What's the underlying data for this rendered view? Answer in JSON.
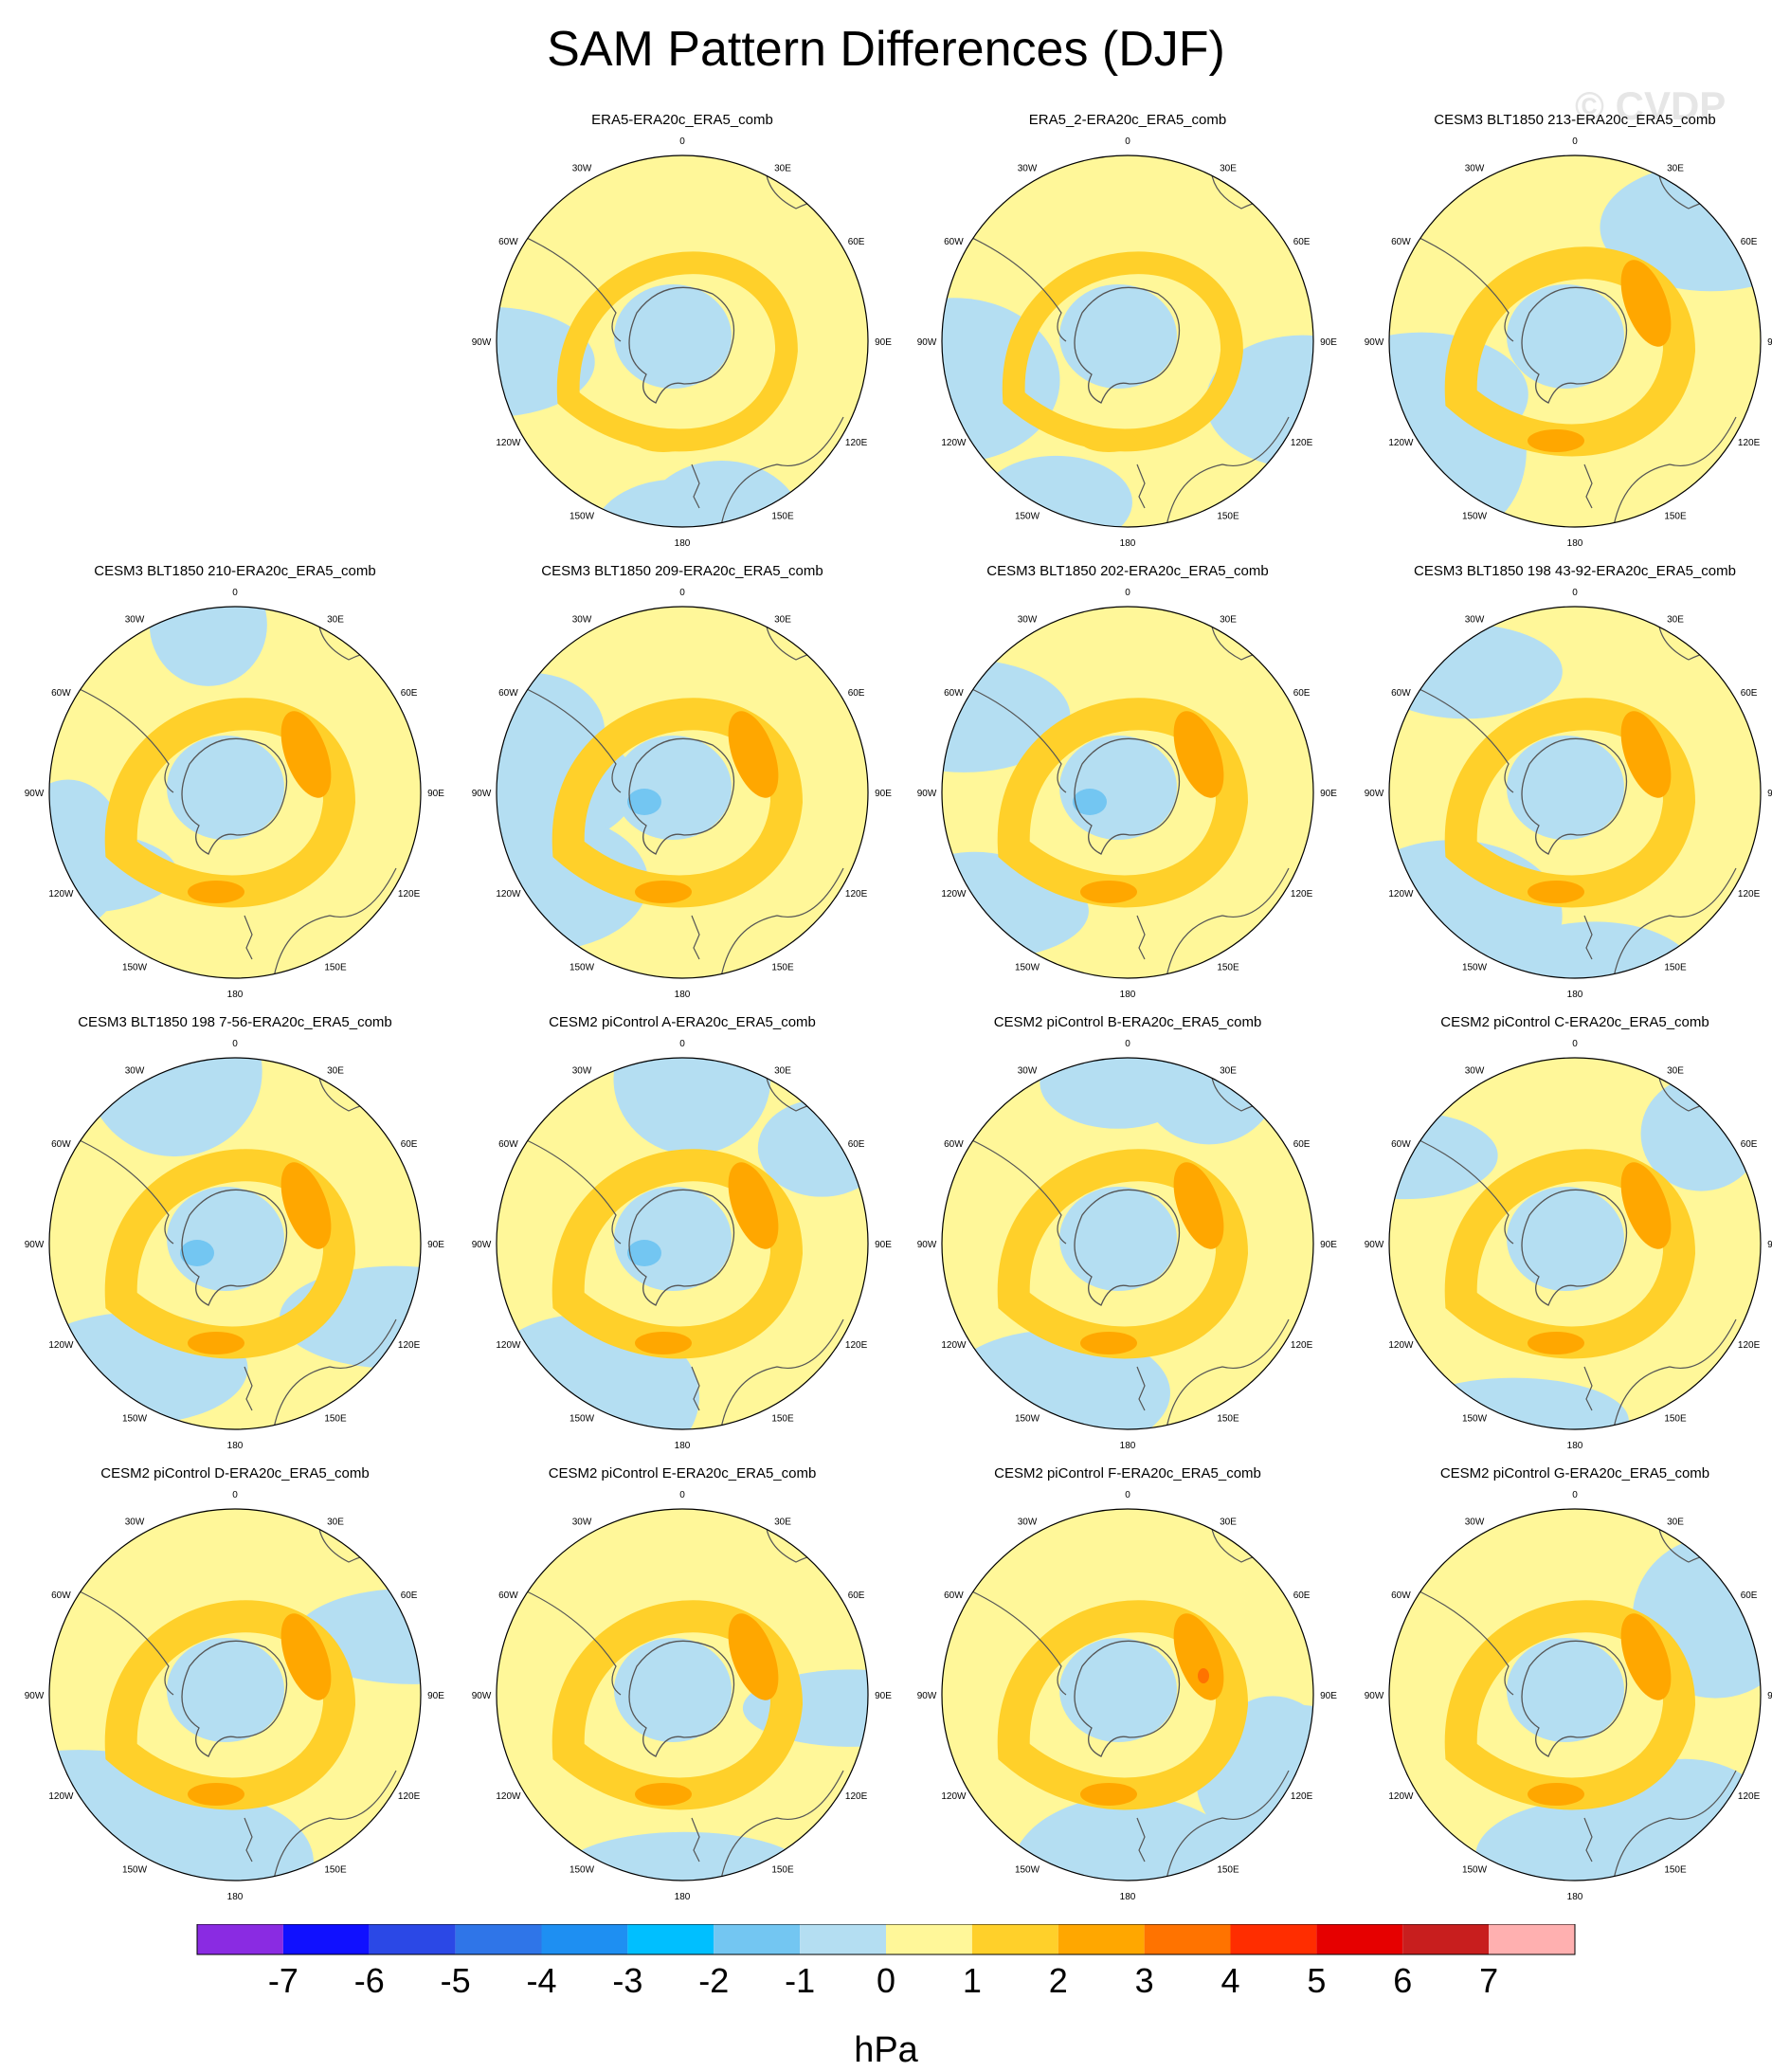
{
  "title": "SAM Pattern Differences (DJF)",
  "watermark": "© CVDP",
  "colors": {
    "land_outline": "#555555",
    "circle_outline": "#000000"
  },
  "longitude_labels": [
    "0",
    "30E",
    "60E",
    "90E",
    "120E",
    "150E",
    "180",
    "150W",
    "120W",
    "90W",
    "60W",
    "30W"
  ],
  "panels": [
    {
      "title": "ERA5-ERA20c_ERA5_comb",
      "max_anomaly_hpa": 2,
      "min_anomaly_hpa": -1
    },
    {
      "title": "ERA5_2-ERA20c_ERA5_comb",
      "max_anomaly_hpa": 2,
      "min_anomaly_hpa": -1
    },
    {
      "title": "CESM3 BLT1850 213-ERA20c_ERA5_comb",
      "max_anomaly_hpa": 3,
      "min_anomaly_hpa": -1
    },
    {
      "title": "CESM3 BLT1850 210-ERA20c_ERA5_comb",
      "max_anomaly_hpa": 3,
      "min_anomaly_hpa": -1
    },
    {
      "title": "CESM3 BLT1850 209-ERA20c_ERA5_comb",
      "max_anomaly_hpa": 3,
      "min_anomaly_hpa": -2
    },
    {
      "title": "CESM3 BLT1850 202-ERA20c_ERA5_comb",
      "max_anomaly_hpa": 3,
      "min_anomaly_hpa": -2
    },
    {
      "title": "CESM3 BLT1850 198 43-92-ERA20c_ERA5_comb",
      "max_anomaly_hpa": 3,
      "min_anomaly_hpa": -1
    },
    {
      "title": "CESM3 BLT1850 198 7-56-ERA20c_ERA5_comb",
      "max_anomaly_hpa": 3,
      "min_anomaly_hpa": -2
    },
    {
      "title": "CESM2 piControl A-ERA20c_ERA5_comb",
      "max_anomaly_hpa": 3,
      "min_anomaly_hpa": -2
    },
    {
      "title": "CESM2 piControl B-ERA20c_ERA5_comb",
      "max_anomaly_hpa": 3,
      "min_anomaly_hpa": -1
    },
    {
      "title": "CESM2 piControl C-ERA20c_ERA5_comb",
      "max_anomaly_hpa": 3,
      "min_anomaly_hpa": -1
    },
    {
      "title": "CESM2 piControl D-ERA20c_ERA5_comb",
      "max_anomaly_hpa": 3,
      "min_anomaly_hpa": -1
    },
    {
      "title": "CESM2 piControl E-ERA20c_ERA5_comb",
      "max_anomaly_hpa": 3,
      "min_anomaly_hpa": -1
    },
    {
      "title": "CESM2 piControl F-ERA20c_ERA5_comb",
      "max_anomaly_hpa": 4,
      "min_anomaly_hpa": -1
    },
    {
      "title": "CESM2 piControl G-ERA20c_ERA5_comb",
      "max_anomaly_hpa": 3,
      "min_anomaly_hpa": -1
    }
  ],
  "colorbar": {
    "unit": "hPa",
    "tick_labels": [
      "-7",
      "-6",
      "-5",
      "-4",
      "-3",
      "-2",
      "-1",
      "0",
      "1",
      "2",
      "3",
      "4",
      "5",
      "6",
      "7"
    ],
    "colors": [
      "#8a2be2",
      "#1010ff",
      "#2b48e6",
      "#2f75e8",
      "#1e8ff2",
      "#00bfff",
      "#73c6f2",
      "#b4def2",
      "#fff799",
      "#ffd02a",
      "#ffa700",
      "#ff7300",
      "#ff2d00",
      "#e60000",
      "#c81e1e",
      "#ffb0b0"
    ]
  }
}
